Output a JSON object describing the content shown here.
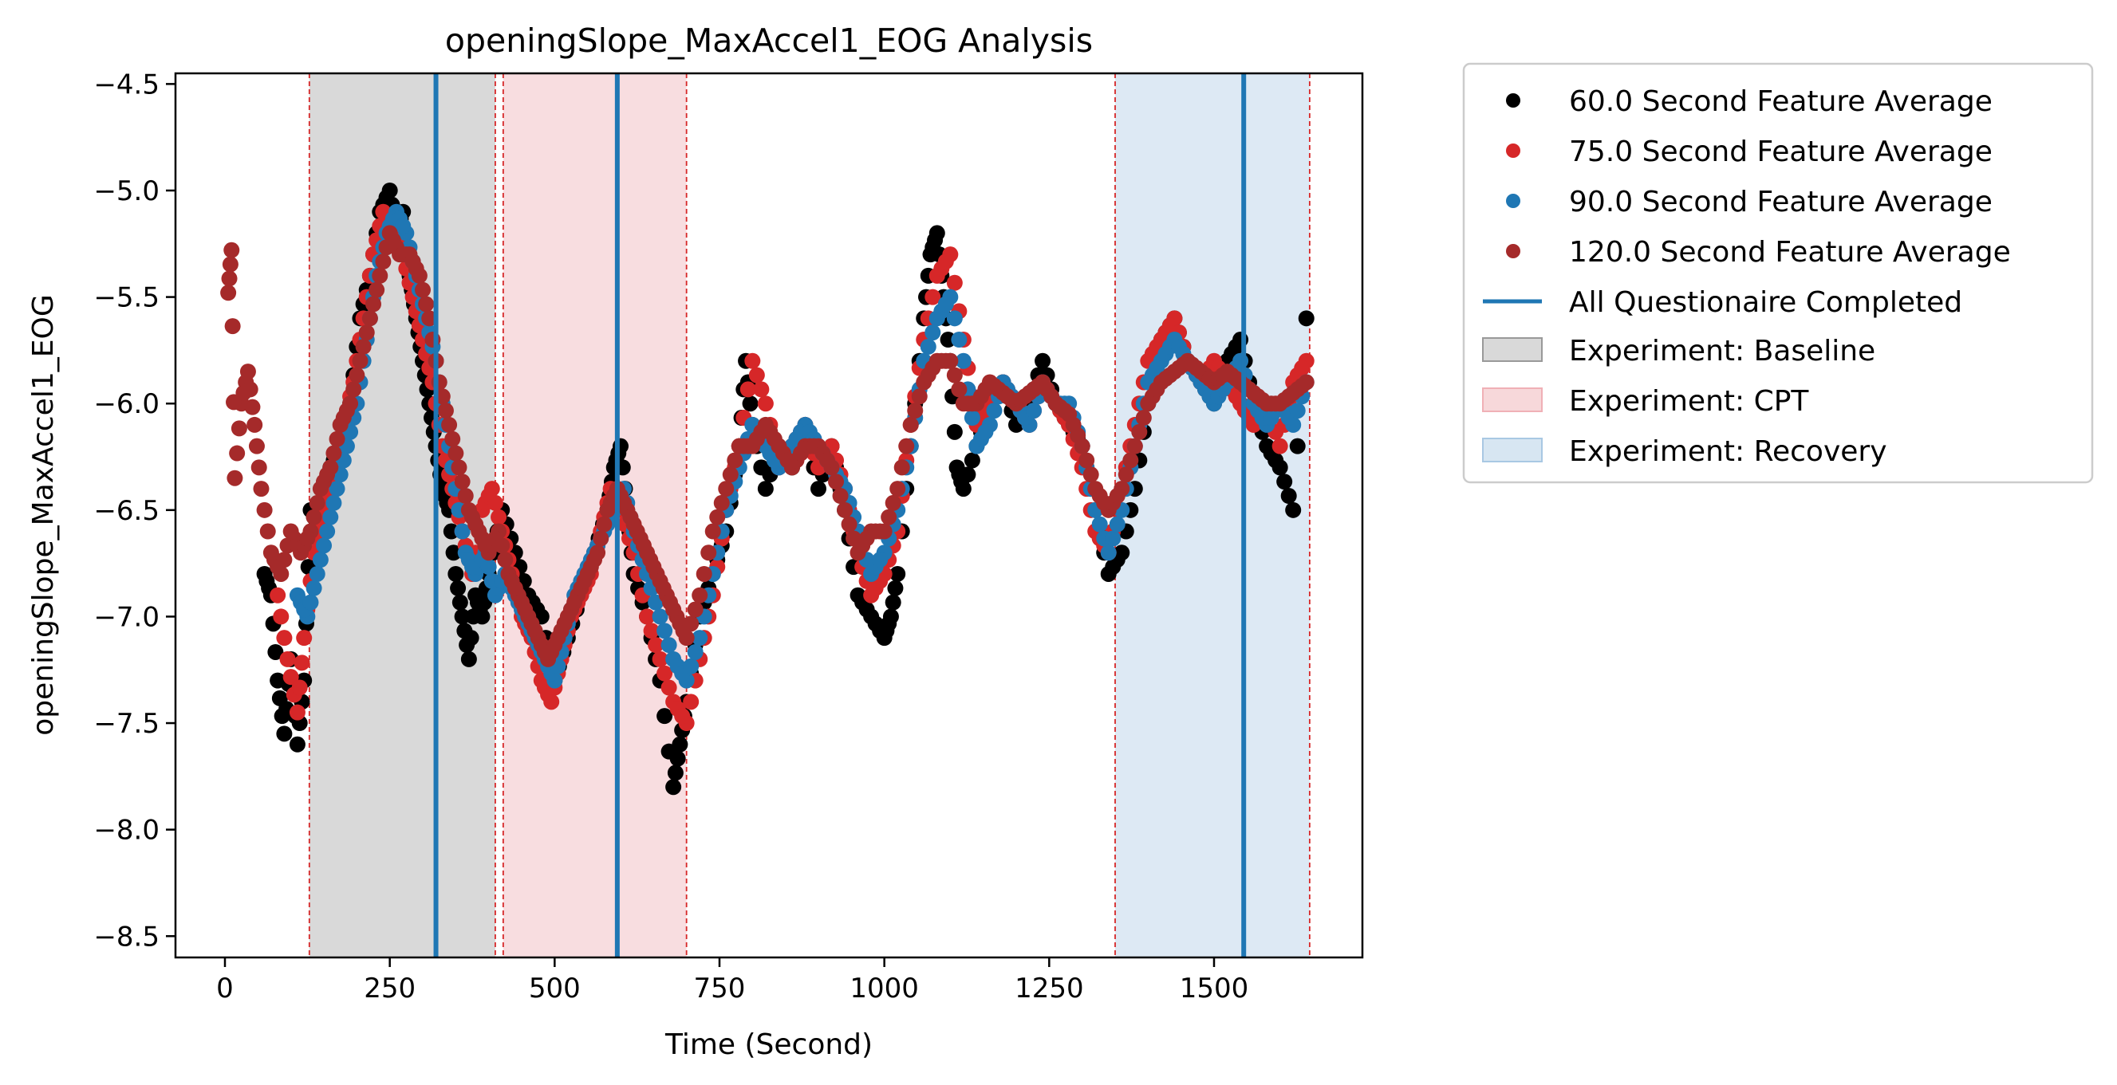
{
  "chart_data": {
    "type": "scatter",
    "title": "openingSlope_MaxAccel1_EOG Analysis",
    "xlabel": "Time (Second)",
    "ylabel": "openingSlope_MaxAccel1_EOG",
    "xlim": [
      -75,
      1725
    ],
    "ylim": [
      -8.6,
      -4.45
    ],
    "x_ticks": [
      0,
      250,
      500,
      750,
      1000,
      1250,
      1500
    ],
    "x_tick_labels": [
      "0",
      "250",
      "500",
      "750",
      "1000",
      "1250",
      "1500"
    ],
    "y_ticks": [
      -4.5,
      -5.0,
      -5.5,
      -6.0,
      -6.5,
      -7.0,
      -7.5,
      -8.0,
      -8.5
    ],
    "y_tick_labels": [
      "−4.5",
      "−5.0",
      "−5.5",
      "−6.0",
      "−6.5",
      "−7.0",
      "−7.5",
      "−8.0",
      "−8.5"
    ],
    "grid": false,
    "legend_position": "outside-top-right",
    "series": [
      {
        "name": "60.0 Second Feature Average",
        "color": "#000000",
        "x": [
          60,
          70,
          80,
          90,
          100,
          110,
          120,
          130,
          145,
          160,
          175,
          190,
          205,
          220,
          235,
          250,
          260,
          270,
          280,
          290,
          300,
          310,
          320,
          330,
          340,
          350,
          360,
          370,
          380,
          390,
          400,
          420,
          440,
          460,
          480,
          500,
          520,
          540,
          560,
          580,
          590,
          600,
          610,
          620,
          640,
          660,
          680,
          690,
          700,
          720,
          740,
          760,
          780,
          790,
          800,
          820,
          840,
          860,
          880,
          900,
          920,
          940,
          960,
          980,
          1000,
          1010,
          1020,
          1040,
          1060,
          1070,
          1080,
          1090,
          1100,
          1110,
          1120,
          1140,
          1160,
          1180,
          1200,
          1220,
          1240,
          1260,
          1280,
          1300,
          1320,
          1340,
          1360,
          1380,
          1400,
          1420,
          1440,
          1460,
          1480,
          1500,
          1520,
          1540,
          1560,
          1580,
          1600,
          1620,
          1640
        ],
        "y": [
          -6.8,
          -6.9,
          -7.3,
          -7.55,
          -7.2,
          -7.6,
          -7.3,
          -6.5,
          -6.6,
          -6.3,
          -6.2,
          -6.0,
          -5.6,
          -5.4,
          -5.1,
          -5.0,
          -5.2,
          -5.1,
          -5.4,
          -5.6,
          -5.8,
          -6.0,
          -6.2,
          -6.4,
          -6.5,
          -6.8,
          -7.0,
          -7.2,
          -6.9,
          -7.0,
          -6.8,
          -6.5,
          -6.7,
          -6.9,
          -7.0,
          -7.3,
          -7.1,
          -6.9,
          -6.7,
          -6.5,
          -6.3,
          -6.2,
          -6.5,
          -6.8,
          -7.0,
          -7.3,
          -7.8,
          -7.6,
          -7.4,
          -7.0,
          -6.8,
          -6.6,
          -6.2,
          -5.8,
          -6.1,
          -6.4,
          -6.2,
          -6.3,
          -6.1,
          -6.4,
          -6.2,
          -6.5,
          -6.9,
          -7.0,
          -7.1,
          -7.0,
          -6.8,
          -6.2,
          -5.6,
          -5.3,
          -5.2,
          -5.5,
          -5.8,
          -6.3,
          -6.4,
          -6.2,
          -6.0,
          -5.9,
          -6.1,
          -6.0,
          -5.8,
          -6.0,
          -6.1,
          -6.2,
          -6.5,
          -6.8,
          -6.7,
          -6.4,
          -6.0,
          -5.7,
          -5.6,
          -5.8,
          -5.9,
          -6.0,
          -5.8,
          -5.7,
          -6.0,
          -6.2,
          -6.3,
          -6.5,
          -5.6
        ]
      },
      {
        "name": "75.0 Second Feature Average",
        "color": "#d62728",
        "x": [
          80,
          95,
          110,
          120,
          135,
          150,
          165,
          180,
          195,
          210,
          225,
          240,
          255,
          270,
          285,
          300,
          315,
          330,
          345,
          360,
          375,
          390,
          405,
          420,
          435,
          450,
          465,
          480,
          495,
          510,
          525,
          540,
          555,
          570,
          585,
          600,
          620,
          640,
          660,
          680,
          700,
          720,
          740,
          760,
          780,
          800,
          820,
          840,
          860,
          880,
          900,
          920,
          940,
          960,
          980,
          1000,
          1020,
          1040,
          1060,
          1080,
          1100,
          1120,
          1140,
          1160,
          1180,
          1200,
          1220,
          1240,
          1260,
          1280,
          1300,
          1320,
          1340,
          1360,
          1380,
          1400,
          1420,
          1440,
          1460,
          1480,
          1500,
          1520,
          1540,
          1560,
          1580,
          1600,
          1620,
          1640
        ],
        "y": [
          -6.9,
          -7.2,
          -7.45,
          -7.1,
          -6.7,
          -6.5,
          -6.3,
          -6.1,
          -5.9,
          -5.6,
          -5.3,
          -5.1,
          -5.2,
          -5.3,
          -5.5,
          -5.7,
          -5.9,
          -6.2,
          -6.4,
          -6.6,
          -6.8,
          -6.5,
          -6.4,
          -6.6,
          -6.8,
          -7.0,
          -7.1,
          -7.3,
          -7.4,
          -7.2,
          -7.0,
          -6.9,
          -6.8,
          -6.6,
          -6.4,
          -6.5,
          -6.7,
          -7.0,
          -7.2,
          -7.4,
          -7.5,
          -7.2,
          -6.9,
          -6.5,
          -6.2,
          -5.8,
          -6.0,
          -6.3,
          -6.2,
          -6.1,
          -6.3,
          -6.2,
          -6.4,
          -6.7,
          -6.9,
          -6.8,
          -6.6,
          -6.1,
          -5.7,
          -5.4,
          -5.3,
          -5.7,
          -6.1,
          -6.0,
          -5.9,
          -6.0,
          -6.1,
          -5.9,
          -6.0,
          -6.1,
          -6.3,
          -6.6,
          -6.7,
          -6.4,
          -6.1,
          -5.8,
          -5.7,
          -5.6,
          -5.8,
          -5.9,
          -5.8,
          -5.9,
          -6.0,
          -6.1,
          -6.0,
          -6.2,
          -5.9,
          -5.8
        ]
      },
      {
        "name": "90.0 Second Feature Average",
        "color": "#1f77b4",
        "x": [
          110,
          125,
          140,
          155,
          170,
          185,
          200,
          215,
          230,
          245,
          260,
          275,
          290,
          305,
          320,
          335,
          350,
          365,
          380,
          395,
          410,
          425,
          440,
          455,
          470,
          485,
          500,
          515,
          530,
          545,
          560,
          575,
          590,
          605,
          620,
          640,
          660,
          680,
          700,
          720,
          740,
          760,
          780,
          800,
          820,
          840,
          860,
          880,
          900,
          920,
          940,
          960,
          980,
          1000,
          1020,
          1040,
          1060,
          1080,
          1100,
          1120,
          1140,
          1160,
          1180,
          1200,
          1220,
          1240,
          1260,
          1280,
          1300,
          1320,
          1340,
          1360,
          1380,
          1400,
          1420,
          1440,
          1460,
          1480,
          1500,
          1520,
          1540,
          1560,
          1580,
          1600,
          1620,
          1640
        ],
        "y": [
          -6.9,
          -7.0,
          -6.8,
          -6.6,
          -6.4,
          -6.2,
          -6.0,
          -5.7,
          -5.4,
          -5.2,
          -5.1,
          -5.2,
          -5.4,
          -5.6,
          -5.8,
          -6.1,
          -6.4,
          -6.7,
          -6.8,
          -6.7,
          -6.9,
          -6.8,
          -6.9,
          -7.0,
          -7.1,
          -7.2,
          -7.3,
          -7.1,
          -6.9,
          -6.8,
          -6.7,
          -6.6,
          -6.5,
          -6.4,
          -6.6,
          -6.8,
          -7.0,
          -7.2,
          -7.3,
          -7.1,
          -6.8,
          -6.5,
          -6.3,
          -6.1,
          -6.2,
          -6.3,
          -6.2,
          -6.1,
          -6.2,
          -6.3,
          -6.4,
          -6.6,
          -6.8,
          -6.7,
          -6.5,
          -6.2,
          -5.8,
          -5.6,
          -5.5,
          -5.8,
          -6.2,
          -6.1,
          -5.9,
          -6.0,
          -6.1,
          -5.9,
          -6.0,
          -6.0,
          -6.2,
          -6.5,
          -6.7,
          -6.5,
          -6.2,
          -5.9,
          -5.8,
          -5.7,
          -5.8,
          -5.9,
          -6.0,
          -5.9,
          -5.8,
          -6.0,
          -6.1,
          -6.0,
          -6.1,
          -5.9
        ]
      },
      {
        "name": "120.0 Second Feature Average",
        "color": "#a52a2a",
        "x": [
          5,
          10,
          15,
          25,
          35,
          45,
          55,
          70,
          85,
          100,
          115,
          130,
          145,
          160,
          175,
          190,
          205,
          220,
          235,
          250,
          265,
          280,
          295,
          310,
          325,
          340,
          355,
          370,
          385,
          400,
          415,
          430,
          445,
          460,
          475,
          490,
          505,
          520,
          535,
          550,
          565,
          580,
          595,
          610,
          625,
          640,
          655,
          670,
          685,
          700,
          720,
          740,
          760,
          780,
          800,
          820,
          840,
          860,
          880,
          900,
          920,
          940,
          960,
          980,
          1000,
          1020,
          1040,
          1060,
          1080,
          1100,
          1120,
          1140,
          1160,
          1180,
          1200,
          1220,
          1240,
          1260,
          1280,
          1300,
          1320,
          1340,
          1360,
          1380,
          1400,
          1420,
          1440,
          1460,
          1480,
          1500,
          1520,
          1540,
          1560,
          1580,
          1600,
          1620,
          1640
        ],
        "y": [
          -5.48,
          -5.28,
          -6.35,
          -6.0,
          -5.85,
          -6.1,
          -6.4,
          -6.7,
          -6.8,
          -6.6,
          -6.7,
          -6.6,
          -6.4,
          -6.3,
          -6.1,
          -6.0,
          -5.8,
          -5.6,
          -5.4,
          -5.2,
          -5.3,
          -5.3,
          -5.4,
          -5.6,
          -5.9,
          -6.1,
          -6.3,
          -6.5,
          -6.6,
          -6.7,
          -6.6,
          -6.8,
          -6.9,
          -7.0,
          -7.1,
          -7.2,
          -7.1,
          -7.0,
          -6.9,
          -6.8,
          -6.7,
          -6.5,
          -6.4,
          -6.5,
          -6.6,
          -6.7,
          -6.8,
          -6.9,
          -7.0,
          -7.1,
          -6.9,
          -6.6,
          -6.4,
          -6.2,
          -6.2,
          -6.1,
          -6.2,
          -6.3,
          -6.2,
          -6.2,
          -6.3,
          -6.5,
          -6.7,
          -6.6,
          -6.6,
          -6.4,
          -6.1,
          -5.9,
          -5.8,
          -5.8,
          -6.0,
          -6.0,
          -5.9,
          -5.95,
          -6.0,
          -5.95,
          -5.9,
          -6.0,
          -6.05,
          -6.2,
          -6.4,
          -6.5,
          -6.4,
          -6.2,
          -6.0,
          -5.9,
          -5.85,
          -5.8,
          -5.85,
          -5.9,
          -5.85,
          -5.9,
          -5.95,
          -6.0,
          -6.0,
          -5.95,
          -5.9
        ]
      }
    ],
    "questionnaire_completed": {
      "name": "All Questionaire Completed",
      "color": "#1f77b4",
      "x": [
        320,
        595,
        1545
      ]
    },
    "experiment_phases": [
      {
        "name": "Experiment: Baseline",
        "color": "#bfbfbf",
        "x_start": 128,
        "x_end": 410
      },
      {
        "name": "Experiment: CPT",
        "color": "#f4c7cb",
        "x_start": 422,
        "x_end": 700
      },
      {
        "name": "Experiment: Recovery",
        "color": "#c6dbec",
        "x_start": 1350,
        "x_end": 1645
      }
    ],
    "phase_boundary_lines": {
      "color": "#d62728",
      "x": [
        128,
        410,
        422,
        700,
        1350,
        1645
      ]
    }
  }
}
